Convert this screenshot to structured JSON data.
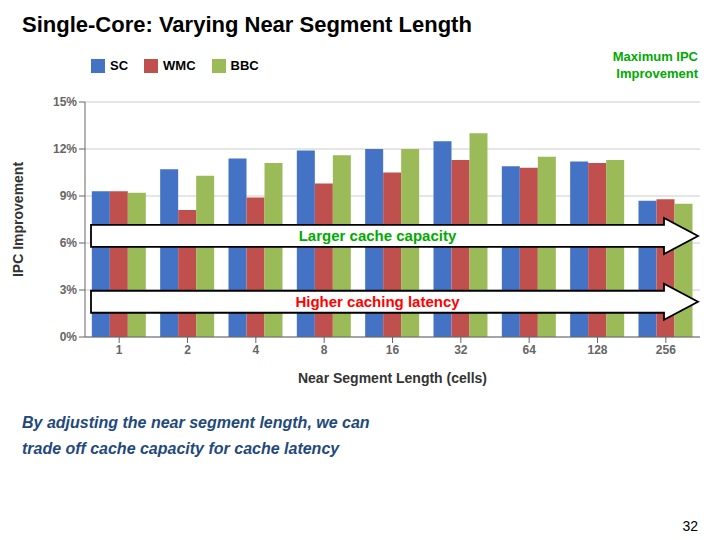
{
  "chart_data": {
    "type": "bar",
    "title": "Single-Core: Varying Near Segment Length",
    "subtitle": "By adjusting the near segment length, we can\ntrade off cache capacity for cache latency",
    "xlabel": "Near Segment Length (cells)",
    "ylabel": "IPC Improvement",
    "categories": [
      "1",
      "2",
      "4",
      "8",
      "16",
      "32",
      "64",
      "128",
      "256"
    ],
    "series": [
      {
        "name": "SC",
        "color": "#4472C4",
        "values": [
          9.3,
          10.7,
          11.4,
          11.9,
          12.0,
          12.5,
          10.9,
          11.2,
          8.7
        ]
      },
      {
        "name": "WMC",
        "color": "#C0504D",
        "values": [
          9.3,
          8.1,
          8.9,
          9.8,
          10.5,
          11.3,
          10.8,
          11.1,
          8.8
        ]
      },
      {
        "name": "BBC",
        "color": "#9BBB59",
        "values": [
          9.2,
          10.3,
          11.1,
          11.6,
          12.0,
          13.0,
          11.5,
          11.3,
          8.5
        ]
      }
    ],
    "ylim": [
      0,
      15
    ],
    "yticks": [
      {
        "value": 0,
        "label": "0%"
      },
      {
        "value": 3,
        "label": "3%"
      },
      {
        "value": 6,
        "label": "6%"
      },
      {
        "value": 9,
        "label": "9%"
      },
      {
        "value": 12,
        "label": "12%"
      },
      {
        "value": 15,
        "label": "15%"
      }
    ],
    "grid": true,
    "legend": "upper left",
    "annotations": [
      {
        "text": "Maximum IPC\nImprovement",
        "color": "#00AA00"
      },
      {
        "text": "Larger cache capacity",
        "color": "#00AA00"
      },
      {
        "text": "Higher caching latency",
        "color": "red"
      },
      {
        "text": "32"
      }
    ]
  }
}
